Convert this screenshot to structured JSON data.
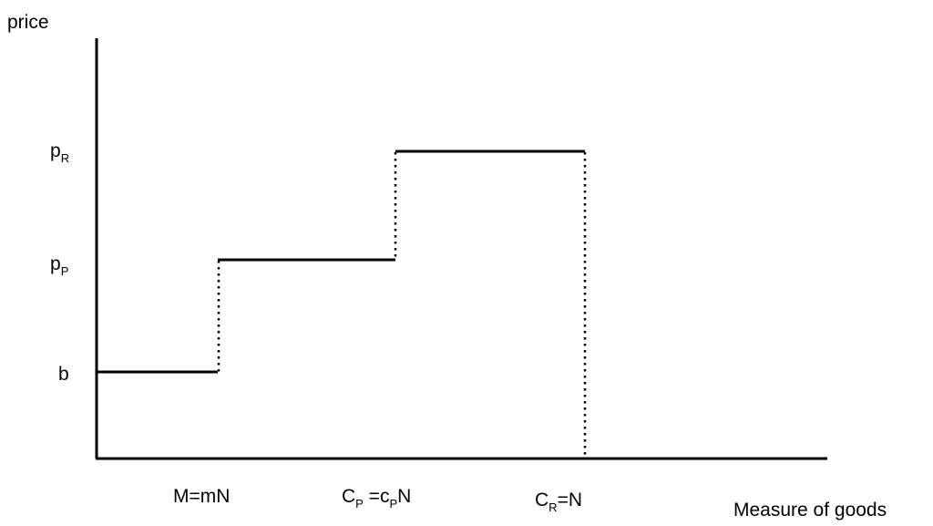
{
  "axes": {
    "y_label": "price",
    "x_label": "Measure of goods"
  },
  "price_levels": {
    "b": {
      "main": "b"
    },
    "pP": {
      "main": "p",
      "sub": "P"
    },
    "pR": {
      "main": "p",
      "sub": "R"
    }
  },
  "quantity_marks": {
    "M": {
      "text": "M=mN"
    },
    "CP": {
      "pre": "C",
      "pre_sub": "P",
      "mid": " =c",
      "mid_sub": "P",
      "post": "N"
    },
    "CR": {
      "pre": "C",
      "pre_sub": "R",
      "post": "=N"
    }
  },
  "colors": {
    "line": "#000000",
    "background": "#ffffff"
  }
}
